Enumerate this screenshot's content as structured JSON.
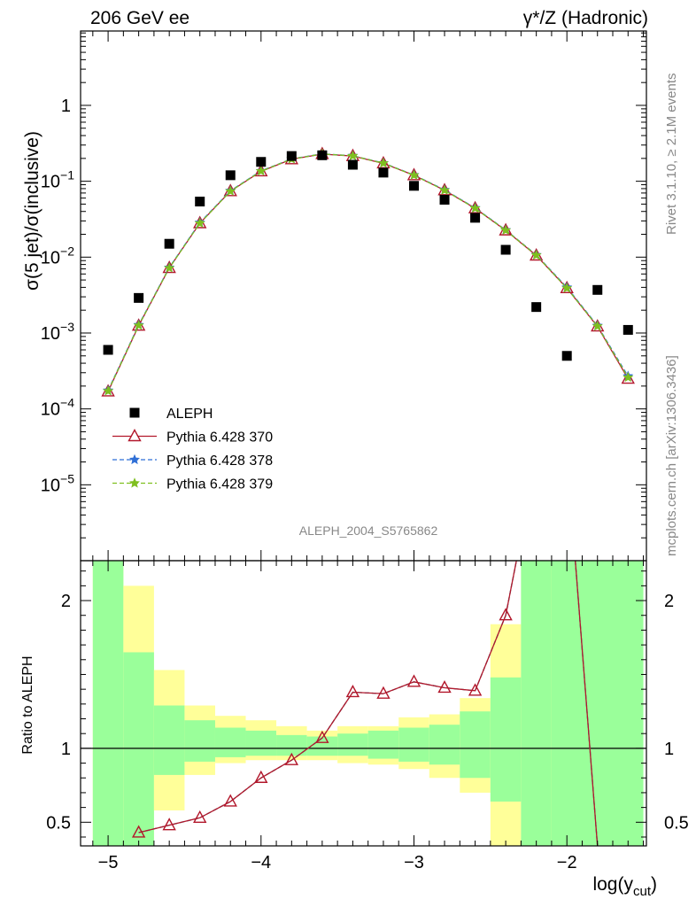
{
  "header": {
    "left_label": "206 GeV ee",
    "right_label": "γ*/Z (Hadronic)"
  },
  "side_labels": {
    "rivet": "Rivet 3.1.10, ≥ 2.1M events",
    "mcplots": "mcplots.cern.ch [arXiv:1306.3436]"
  },
  "analysis_id": "ALEPH_2004_S5765862",
  "colors": {
    "data": "#000000",
    "pythia370": "#b2172b",
    "pythia378": "#2f6fd6",
    "pythia379": "#7fbf1f",
    "band_green": "#9aff9a",
    "band_yellow": "#ffff99"
  },
  "chart_data": [
    {
      "type": "scatter",
      "yscale": "log",
      "ylabel": "σ(5 jet)/σ(inclusive)",
      "xlim": [
        -5.18,
        -1.48
      ],
      "ylim_exp": [
        -6,
        0.98
      ],
      "yticks": [
        {
          "exp": -5,
          "label": "10"
        },
        {
          "exp": -4,
          "label": "10"
        },
        {
          "exp": -3,
          "label": "10"
        },
        {
          "exp": -2,
          "label": "10"
        },
        {
          "exp": -1,
          "label": "10"
        },
        {
          "exp": 0,
          "label": "1"
        }
      ],
      "legend_position": "lower-left",
      "x": [
        -5.0,
        -4.8,
        -4.6,
        -4.4,
        -4.2,
        -4.0,
        -3.8,
        -3.6,
        -3.4,
        -3.2,
        -3.0,
        -2.8,
        -2.6,
        -2.4,
        -2.2,
        -2.0,
        -1.8,
        -1.6
      ],
      "series": [
        {
          "name": "ALEPH",
          "key": "data",
          "marker": "square",
          "line": "none",
          "values": [
            0.0006,
            0.0029,
            0.015,
            0.054,
            0.12,
            0.18,
            0.215,
            0.22,
            0.165,
            0.13,
            0.087,
            0.057,
            0.033,
            0.0125,
            0.0022,
            0.0005,
            0.0037,
            0.0011
          ]
        },
        {
          "name": "Pythia 6.428 370",
          "key": "pythia370",
          "marker": "triangle",
          "line": "solid",
          "values": [
            0.00017,
            0.00125,
            0.0072,
            0.028,
            0.074,
            0.135,
            0.195,
            0.228,
            0.215,
            0.172,
            0.12,
            0.076,
            0.044,
            0.0225,
            0.0105,
            0.0039,
            0.00122,
            0.00025
          ]
        },
        {
          "name": "Pythia 6.428 378",
          "key": "pythia378",
          "marker": "star",
          "line": "dashed",
          "values": [
            0.000175,
            0.00128,
            0.0073,
            0.0285,
            0.075,
            0.137,
            0.197,
            0.23,
            0.217,
            0.174,
            0.121,
            0.077,
            0.0445,
            0.0228,
            0.0107,
            0.004,
            0.00125,
            0.00027
          ]
        },
        {
          "name": "Pythia 6.428 379",
          "key": "pythia379",
          "marker": "star",
          "line": "dashed",
          "values": [
            0.000172,
            0.00126,
            0.0072,
            0.028,
            0.074,
            0.136,
            0.196,
            0.229,
            0.216,
            0.173,
            0.12,
            0.076,
            0.044,
            0.0226,
            0.0106,
            0.0039,
            0.00123,
            0.00026
          ]
        }
      ]
    },
    {
      "type": "line",
      "ylabel": "Ratio to ALEPH",
      "xlabel": "log(y",
      "xlabel_sub": "cut",
      "xlabel_close": ")",
      "xlim": [
        -5.18,
        -1.48
      ],
      "ylim": [
        0.34,
        2.27
      ],
      "xticks": [
        {
          "value": -5,
          "label": "−5"
        },
        {
          "value": -4,
          "label": "−4"
        },
        {
          "value": -3,
          "label": "−3"
        },
        {
          "value": -2,
          "label": "−2"
        }
      ],
      "yticks": [
        {
          "value": 0.5,
          "label": "0.5"
        },
        {
          "value": 1,
          "label": "1"
        },
        {
          "value": 2,
          "label": "2"
        }
      ],
      "bands": [
        {
          "x0": -5.1,
          "x1": -4.9,
          "green": [
            0.0,
            3.0
          ],
          "yellow": [
            0.0,
            3.0
          ]
        },
        {
          "x0": -4.9,
          "x1": -4.7,
          "green": [
            0.0,
            1.65
          ],
          "yellow": [
            0.3,
            2.1
          ]
        },
        {
          "x0": -4.7,
          "x1": -4.5,
          "green": [
            0.82,
            1.29
          ],
          "yellow": [
            0.58,
            1.53
          ]
        },
        {
          "x0": -4.5,
          "x1": -4.3,
          "green": [
            0.91,
            1.19
          ],
          "yellow": [
            0.82,
            1.29
          ]
        },
        {
          "x0": -4.3,
          "x1": -4.1,
          "green": [
            0.94,
            1.14
          ],
          "yellow": [
            0.9,
            1.22
          ]
        },
        {
          "x0": -4.1,
          "x1": -3.9,
          "green": [
            0.95,
            1.12
          ],
          "yellow": [
            0.92,
            1.19
          ]
        },
        {
          "x0": -3.9,
          "x1": -3.7,
          "green": [
            0.95,
            1.09
          ],
          "yellow": [
            0.92,
            1.15
          ]
        },
        {
          "x0": -3.7,
          "x1": -3.5,
          "green": [
            0.95,
            1.08
          ],
          "yellow": [
            0.92,
            1.12
          ]
        },
        {
          "x0": -3.5,
          "x1": -3.3,
          "green": [
            0.95,
            1.1
          ],
          "yellow": [
            0.9,
            1.15
          ]
        },
        {
          "x0": -3.3,
          "x1": -3.1,
          "green": [
            0.93,
            1.12
          ],
          "yellow": [
            0.89,
            1.15
          ]
        },
        {
          "x0": -3.1,
          "x1": -2.9,
          "green": [
            0.91,
            1.14
          ],
          "yellow": [
            0.86,
            1.21
          ]
        },
        {
          "x0": -2.9,
          "x1": -2.7,
          "green": [
            0.89,
            1.16
          ],
          "yellow": [
            0.8,
            1.23
          ]
        },
        {
          "x0": -2.7,
          "x1": -2.5,
          "green": [
            0.8,
            1.25
          ],
          "yellow": [
            0.7,
            1.34
          ]
        },
        {
          "x0": -2.5,
          "x1": -2.3,
          "green": [
            0.64,
            1.48
          ],
          "yellow": [
            0.28,
            1.84
          ]
        },
        {
          "x0": -2.3,
          "x1": -2.1,
          "green": [
            0.0,
            3.0
          ],
          "yellow": [
            0.0,
            3.0
          ]
        },
        {
          "x0": -2.1,
          "x1": -1.5,
          "green": [
            0.0,
            3.0
          ],
          "yellow": [
            0.0,
            3.0
          ]
        }
      ],
      "reference": 1.0,
      "ratio_x": [
        -4.8,
        -4.6,
        -4.4,
        -4.2,
        -4.0,
        -3.8,
        -3.6,
        -3.4,
        -3.2,
        -3.0,
        -2.8,
        -2.6,
        -2.4
      ],
      "ratio_values": [
        0.43,
        0.48,
        0.53,
        0.64,
        0.8,
        0.92,
        1.07,
        1.38,
        1.37,
        1.45,
        1.41,
        1.39,
        1.9
      ],
      "steep_lines": [
        {
          "from": [
            -2.4,
            1.9
          ],
          "to": [
            -2.33,
            2.27
          ]
        },
        {
          "from": [
            -1.945,
            2.27
          ],
          "to": [
            -1.8,
            0.34
          ]
        }
      ]
    }
  ]
}
